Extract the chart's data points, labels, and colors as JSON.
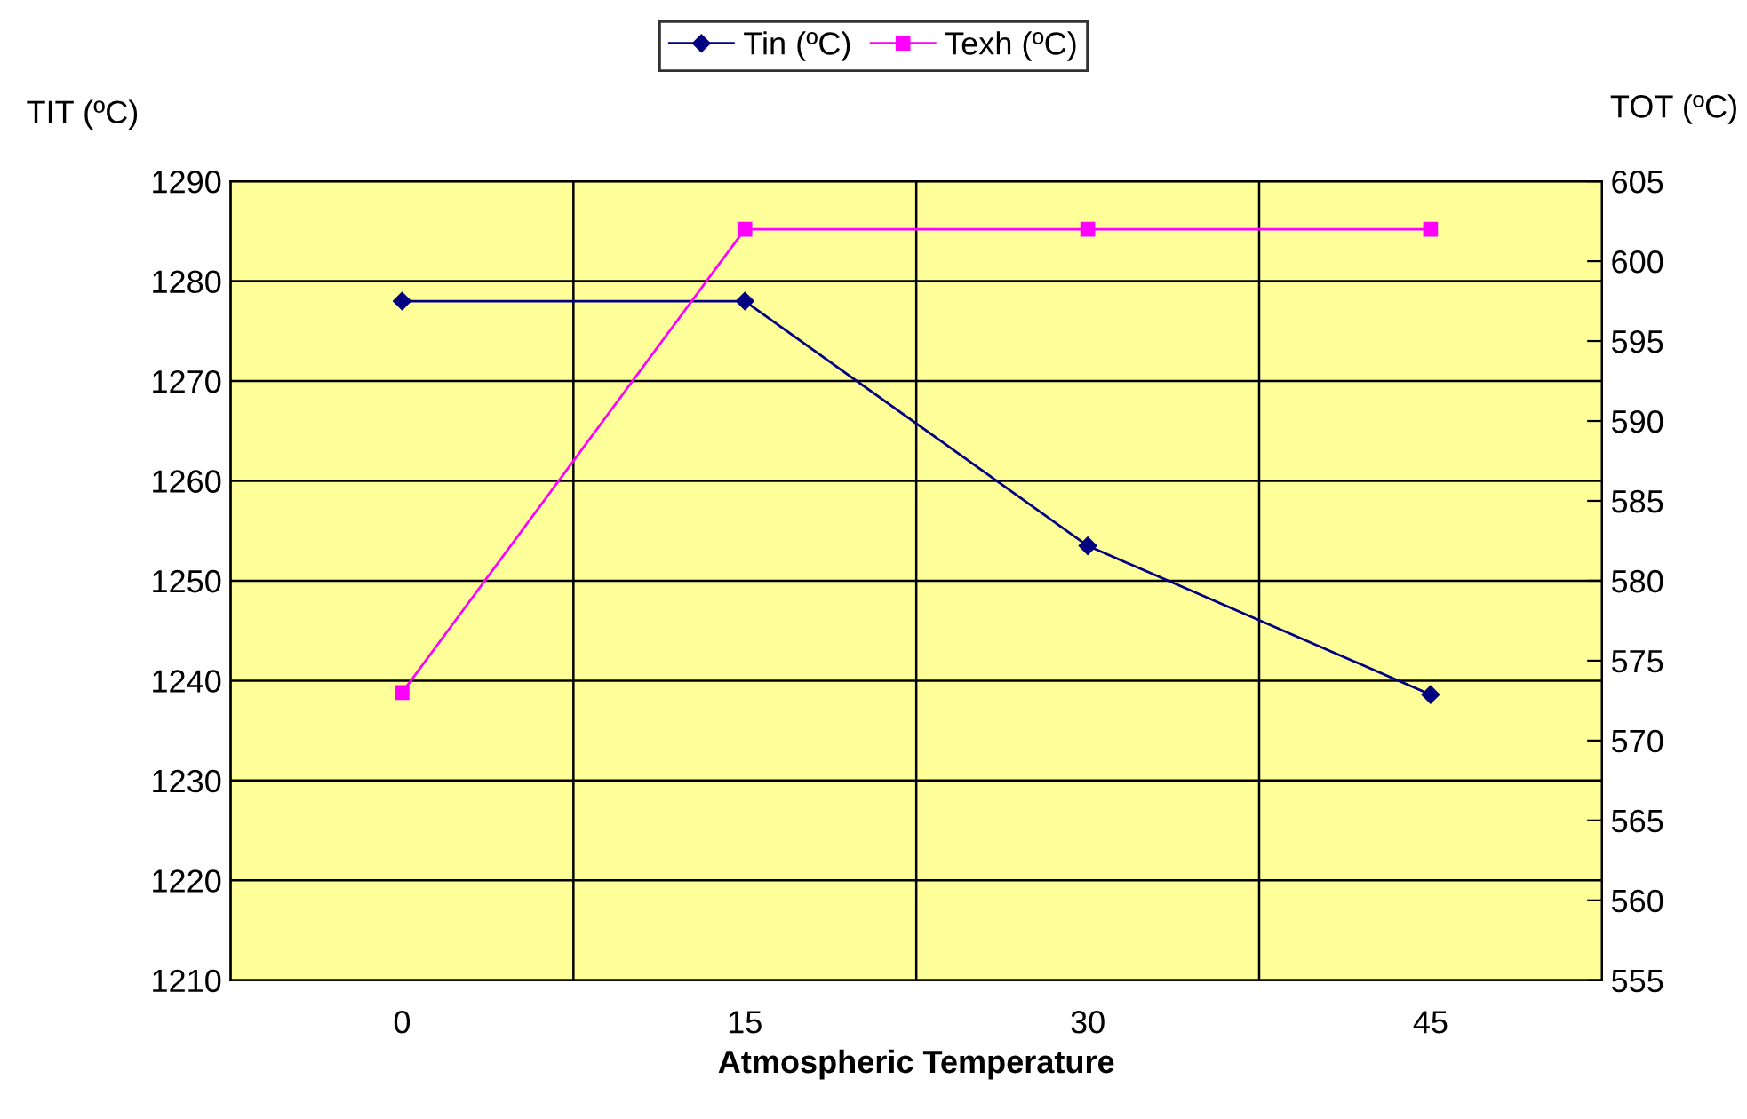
{
  "chart_data": {
    "type": "line",
    "xlabel": "Atmospheric Temperature",
    "ylabel": "TIT (ºC)",
    "y2label": "TOT (ºC)",
    "categories": [
      "0",
      "15",
      "30",
      "45"
    ],
    "series": [
      {
        "name": "Tin (ºC)",
        "color": "#000080",
        "marker": "diamond",
        "values": [
          1278,
          1278,
          1253.5,
          1238.6
        ]
      },
      {
        "name": "Texh (ºC)",
        "color": "#ff00ff",
        "marker": "square",
        "axis": "y2",
        "values": [
          573,
          602,
          602,
          602
        ]
      }
    ],
    "ylim": [
      1210,
      1290
    ],
    "yticks": [
      1210,
      1220,
      1230,
      1240,
      1250,
      1260,
      1270,
      1280,
      1290
    ],
    "y2lim": [
      555,
      605
    ],
    "y2ticks": [
      555,
      560,
      565,
      570,
      575,
      580,
      585,
      590,
      595,
      600,
      605
    ],
    "grid": true,
    "legend": "top",
    "line_style": "solid"
  }
}
